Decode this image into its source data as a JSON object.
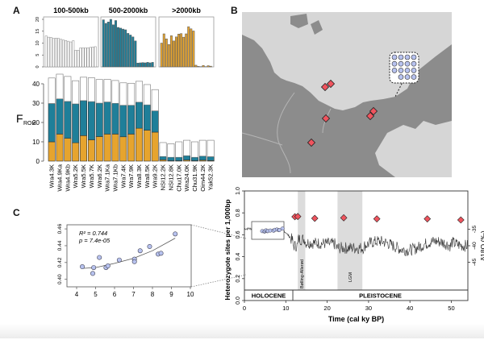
{
  "panels": {
    "a": "A",
    "b": "B",
    "c": "C"
  },
  "colors": {
    "short": "#ffffff",
    "medium": "#1f7f99",
    "long": "#e6a42e",
    "ocean": "#d6d6d6",
    "land": "#8c8c8c",
    "site": "#f0545e",
    "scatter_point": "#b7c2ef",
    "shade": "#dcdcdc"
  },
  "chart_data": [
    {
      "id": "roh-100-500",
      "type": "bar",
      "title": "100-500kb",
      "ylim": [
        0,
        20
      ],
      "yticks": [
        0,
        5,
        10,
        15,
        20
      ],
      "categories": [
        "Wra4.3K",
        "Wra4.9Ka",
        "Wra4.9Kb",
        "Wra5.2K",
        "Wra5.5K",
        "Wra5.7K",
        "Wra6.2K",
        "Wra7.1Ka",
        "Wra7.1Kb",
        "Wra7.4K",
        "Wra7.9K",
        "Wra8.3K",
        "Wra8.5K",
        "Wra9.2K",
        "NSI12.2K",
        "NSI12.8K",
        "Chu17.0K",
        "Wra24.0K",
        "Chu31.9K",
        "Oim44.2K",
        "Yak52.3K"
      ],
      "values": [
        13,
        12.5,
        12.4,
        12,
        12.1,
        12,
        11.6,
        11.3,
        11.1,
        10.8,
        10.5,
        11,
        7,
        7,
        8,
        8,
        8,
        8,
        8.2,
        8.4,
        8.5
      ]
    },
    {
      "id": "roh-500-2000",
      "type": "bar",
      "title": "500-2000kb",
      "ylim": [
        0,
        20
      ],
      "categories": [
        "Wra4.3K",
        "Wra4.9Ka",
        "Wra4.9Kb",
        "Wra5.2K",
        "Wra5.5K",
        "Wra5.7K",
        "Wra6.2K",
        "Wra7.1Ka",
        "Wra7.1Kb",
        "Wra7.4K",
        "Wra7.9K",
        "Wra8.3K",
        "Wra8.5K",
        "Wra9.2K",
        "NSI12.2K",
        "NSI12.8K",
        "Chu17.0K",
        "Wra24.0K",
        "Chu31.9K",
        "Oim44.2K",
        "Yak52.3K"
      ],
      "values": [
        19.8,
        18.3,
        18.9,
        20,
        17.7,
        19.5,
        16.6,
        16.3,
        15.9,
        15.6,
        14.1,
        13.4,
        12.6,
        10.9,
        1.6,
        1.7,
        1.8,
        1.7,
        1.9,
        1.7,
        1.9
      ]
    },
    {
      "id": "roh-2000",
      "type": "bar",
      "title": ">2000kb",
      "ylim": [
        0,
        20
      ],
      "categories": [
        "Wra4.3K",
        "Wra4.9Ka",
        "Wra4.9Kb",
        "Wra5.2K",
        "Wra5.5K",
        "Wra5.7K",
        "Wra6.2K",
        "Wra7.1Ka",
        "Wra7.1Kb",
        "Wra7.4K",
        "Wra7.9K",
        "Wra8.3K",
        "Wra8.5K",
        "Wra9.2K",
        "NSI12.2K",
        "NSI12.8K",
        "Chu17.0K",
        "Wra24.0K",
        "Chu31.9K",
        "Oim44.2K",
        "Yak52.3K"
      ],
      "values": [
        10,
        13.9,
        11.8,
        9.4,
        13.1,
        10.9,
        12.6,
        13.8,
        14,
        12.5,
        13.9,
        16.9,
        16,
        15.1,
        0.7,
        0.2,
        0.1,
        0.6,
        0.1,
        0.5,
        0.3
      ]
    },
    {
      "id": "froh-stacked",
      "type": "bar",
      "ylabel": "F",
      "ylabel_sub": "ROH",
      "ylim": [
        0,
        45
      ],
      "yticks": [
        0,
        10,
        20,
        30,
        40
      ],
      "categories": [
        "Wra4.3K",
        "Wra4.9Ka",
        "Wra4.9Kb",
        "Wra5.2K",
        "Wra5.5K",
        "Wra5.7K",
        "Wra6.2K",
        "Wra7.1Ka",
        "Wra7.1Kb",
        "Wra7.4K",
        "Wra7.9K",
        "Wra8.3K",
        "Wra8.5K",
        "Wra9.2K",
        "NSI12.2K",
        "NSI12.8K",
        "Chu17.0K",
        "Wra24.0K",
        "Chu31.9K",
        "Oim44.2K",
        "Yak52.3K"
      ],
      "series": [
        {
          "name": ">2000kb",
          "values": [
            10,
            14,
            11.8,
            9.5,
            13.2,
            11,
            12.7,
            14,
            14,
            12.6,
            14,
            17,
            16,
            15,
            0.7,
            0.2,
            0.2,
            0.6,
            0.2,
            0.5,
            0.3
          ]
        },
        {
          "name": "500-2000kb",
          "values": [
            19.8,
            18.2,
            19.1,
            20.1,
            18.1,
            19.8,
            17.3,
            16.6,
            15.9,
            16.3,
            14.9,
            13.5,
            13.1,
            11,
            1.7,
            1.8,
            1.8,
            2.2,
            1.8,
            2.1,
            2
          ]
        },
        {
          "name": "100-500kb",
          "values": [
            13.2,
            12.8,
            12.9,
            12,
            12.1,
            12.3,
            12.2,
            11.7,
            11.8,
            11.6,
            11.4,
            10.8,
            10.5,
            11,
            7.2,
            7,
            8,
            8,
            8,
            8.2,
            8.5
          ]
        }
      ]
    },
    {
      "id": "map-sites",
      "type": "scatter",
      "title": "",
      "inset_dots": 15,
      "inset_site": 1,
      "sites_count": 7
    },
    {
      "id": "heterozygosity-scatter",
      "type": "scatter",
      "xlim": [
        4,
        10
      ],
      "ylim": [
        0.39,
        0.46
      ],
      "xticks": [
        4,
        5,
        6,
        7,
        8,
        9,
        10
      ],
      "yticks": [
        0.4,
        0.42,
        0.44,
        0.46
      ],
      "ytick_labels": [
        "0.40",
        "0.42",
        "0.44",
        "0.46"
      ],
      "annotation_r2": "R² = 0.744",
      "annotation_p": "p = 7.4e-05",
      "points": [
        [
          4.3,
          0.415
        ],
        [
          4.85,
          0.407
        ],
        [
          4.9,
          0.414
        ],
        [
          5.2,
          0.426
        ],
        [
          5.55,
          0.414
        ],
        [
          5.65,
          0.416
        ],
        [
          6.25,
          0.423
        ],
        [
          7.05,
          0.424
        ],
        [
          7.05,
          0.421
        ],
        [
          7.35,
          0.434
        ],
        [
          7.85,
          0.439
        ],
        [
          8.3,
          0.43
        ],
        [
          8.45,
          0.431
        ],
        [
          9.2,
          0.454
        ]
      ],
      "fit": [
        [
          4.3,
          0.413
        ],
        [
          5,
          0.414
        ],
        [
          6,
          0.419
        ],
        [
          7,
          0.425
        ],
        [
          8,
          0.434
        ],
        [
          9.2,
          0.449
        ]
      ]
    },
    {
      "id": "heterozygosity-time",
      "type": "line",
      "xlabel": "Time (cal ky BP)",
      "ylabel": "Heterozygote sites per 1,000bp",
      "ylabel_right": "δ18O (‰)",
      "xlim": [
        0,
        54
      ],
      "ylim": [
        0,
        1.0
      ],
      "xticks": [
        0,
        10,
        20,
        30,
        40,
        50
      ],
      "yticks": [
        0.0,
        0.2,
        0.4,
        0.6,
        0.8,
        1.0
      ],
      "ytick_labels": [
        "0.0",
        "0.2",
        "0.4",
        "0.6",
        "0.8",
        "1.0"
      ],
      "right_ticks": [
        -35,
        -40,
        -45
      ],
      "right_tick_positions": [
        0.65,
        0.5,
        0.35
      ],
      "sample_points": [
        [
          12.2,
          0.765
        ],
        [
          12.9,
          0.767
        ],
        [
          17,
          0.75
        ],
        [
          24,
          0.755
        ],
        [
          32,
          0.745
        ],
        [
          44.2,
          0.745
        ],
        [
          52.3,
          0.735
        ]
      ],
      "shaded": [
        {
          "label": "Bølling-Allerød",
          "from": 12.9,
          "to": 14.7
        },
        {
          "label": "LGM",
          "from": 22.5,
          "to": 28.5
        }
      ],
      "epochs": [
        {
          "label": "HOLOCENE",
          "from": 0,
          "to": 11.7
        },
        {
          "label": "PLEISTOCENE",
          "from": 11.7,
          "to": 54
        }
      ],
      "inset_label": "zoom-inset"
    }
  ]
}
